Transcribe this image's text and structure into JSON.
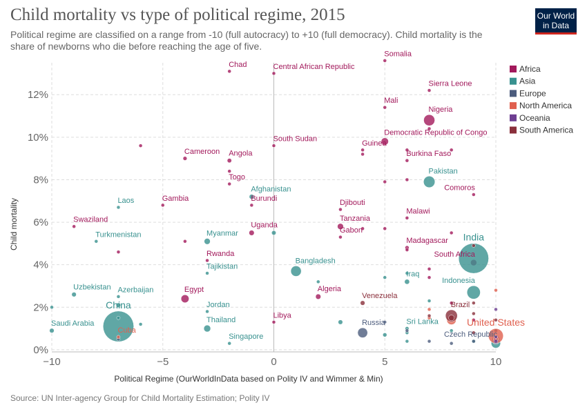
{
  "chart_data": {
    "type": "scatter",
    "title": "Child mortality vs type of political regime, 2015",
    "subtitle": "Political regime are classified on a range from -10 (full autocracy) to +10 (full democracy). Child mortality is the share of newborns who die before reaching the age of five.",
    "logo": [
      "Our World",
      "in Data"
    ],
    "x_label": "Political Regime (OurWorldInData based on Polity IV and Wimmer & Min)",
    "y_label": "Child mortality",
    "source": "Source: UN Inter-agency Group for Child Mortality Estimation; Polity IV",
    "xlim": [
      -10,
      10
    ],
    "ylim": [
      -0.1,
      13.5
    ],
    "xticks": [
      {
        "value": -10,
        "label": "−10"
      },
      {
        "value": -5,
        "label": "−5"
      },
      0,
      5,
      10
    ],
    "yticks": [
      {
        "value": 0,
        "label": "0%"
      },
      {
        "value": 2,
        "label": "2%"
      },
      {
        "value": 4,
        "label": "4%"
      },
      {
        "value": 6,
        "label": "6%"
      },
      {
        "value": 8,
        "label": "8%"
      },
      {
        "value": 10,
        "label": "10%"
      },
      {
        "value": 12,
        "label": "12%"
      }
    ],
    "grid": true,
    "legend": "right",
    "series": [
      {
        "name": "Africa",
        "color": "#a2195b",
        "x": [
          -2,
          0,
          5,
          7,
          5,
          7,
          7,
          5,
          -4,
          -2,
          0,
          4,
          6,
          -6,
          4,
          6,
          8,
          -2,
          -2,
          5,
          6,
          9,
          -5,
          -1,
          3,
          6,
          -9,
          3,
          3,
          -1,
          -4,
          5,
          4,
          6,
          9,
          8,
          -7,
          -3,
          -4,
          2,
          0,
          7,
          7,
          6,
          8,
          9
        ],
        "values": [
          13.1,
          13.0,
          13.6,
          12.2,
          11.4,
          10.8,
          10.4,
          9.8,
          9.0,
          8.9,
          9.6,
          9.4,
          8.9,
          9.6,
          9.2,
          9.4,
          9.4,
          7.8,
          8.4,
          7.9,
          8.0,
          7.3,
          6.8,
          6.8,
          6.6,
          6.2,
          5.8,
          5.8,
          5.3,
          5.5,
          5.1,
          5.7,
          5.7,
          4.8,
          4.1,
          5.5,
          4.6,
          4.2,
          2.4,
          2.5,
          1.3,
          3.8,
          3.4,
          4.7,
          2.2,
          1.4
        ],
        "sizes": [
          14,
          4.5,
          14,
          7,
          17,
          181,
          5,
          77,
          23,
          28,
          12,
          12,
          18,
          1,
          5,
          4,
          2,
          7,
          2,
          10,
          3,
          1,
          2,
          10,
          1,
          17,
          1,
          53,
          2,
          40,
          4,
          3,
          5,
          24,
          55,
          11,
          5,
          11,
          92,
          40,
          6,
          4,
          2,
          2,
          1,
          1
        ],
        "labels": [
          "Chad",
          "Central African Republic",
          "Somalia",
          "Sierra Leone",
          "Mali",
          "Nigeria",
          null,
          "Democratic Republic of Congo",
          "Cameroon",
          "Angola",
          "South Sudan",
          "Guinea",
          "Burkina Faso",
          null,
          null,
          null,
          null,
          "Togo",
          null,
          null,
          null,
          "Comoros",
          "Gambia",
          "Burundi",
          "Djibouti",
          "Malawi",
          "Swaziland",
          "Tanzania",
          "Gabon",
          "Uganda",
          null,
          null,
          null,
          "Madagascar",
          "South Africa",
          null,
          null,
          "Rwanda",
          "Egypt",
          "Algeria",
          "Libya",
          null,
          null,
          null,
          null,
          null
        ]
      },
      {
        "name": "Asia",
        "color": "#38918f",
        "x": [
          -1,
          -7,
          7,
          -8,
          -3,
          0,
          9,
          1,
          -3,
          6,
          6,
          2,
          9,
          -9,
          -7,
          -7,
          -7,
          -7,
          -3,
          -3,
          -10,
          -10,
          -6,
          -2,
          3,
          6,
          5,
          6,
          7,
          5,
          8,
          10,
          9,
          6
        ],
        "values": [
          7.2,
          6.7,
          7.9,
          5.1,
          5.1,
          5.5,
          4.3,
          3.7,
          3.6,
          3.2,
          3.6,
          3.2,
          2.7,
          2.6,
          2.5,
          1.1,
          2.1,
          1.5,
          1.8,
          1.0,
          0.9,
          2.0,
          1.2,
          0.3,
          1.3,
          1.0,
          0.7,
          0.8,
          2.3,
          3.4,
          0.9,
          0.3,
          0.4,
          0.4
        ],
        "sizes": [
          33,
          7,
          189,
          5,
          53,
          28,
          1311,
          161,
          8,
          36,
          5,
          4,
          258,
          31,
          10,
          1371,
          30,
          3,
          8,
          68,
          31,
          3,
          4,
          6,
          30,
          21,
          24,
          2,
          2,
          3,
          8,
          127,
          23,
          4
        ],
        "labels": [
          "Afghanistan",
          "Laos",
          "Pakistan",
          "Turkmenistan",
          "Myanmar",
          null,
          "India",
          "Bangladesh",
          "Tajikistan",
          "Iraq",
          null,
          null,
          "Indonesia",
          "Uzbekistan",
          "Azerbaijan",
          "China",
          null,
          null,
          "Jordan",
          "Thailand",
          "Saudi Arabia",
          null,
          null,
          "Singapore",
          null,
          "Sri Lanka",
          null,
          null,
          null,
          null,
          null,
          null,
          null,
          null
        ]
      },
      {
        "name": "Europe",
        "color": "#4c5c7d",
        "x": [
          4,
          10,
          9,
          10,
          10,
          8,
          7,
          10,
          10,
          5,
          6,
          -7
        ],
        "values": [
          0.8,
          0.4,
          0.4,
          0.4,
          0.5,
          0.3,
          0.4,
          0.6,
          0.9,
          1.3,
          0.9,
          0.5
        ],
        "sizes": [
          144,
          10,
          5,
          60,
          80,
          10,
          2,
          10,
          4,
          3,
          9,
          9
        ],
        "labels": [
          "Russia",
          "Czech Republic",
          null,
          null,
          null,
          null,
          null,
          null,
          null,
          null,
          null,
          null
        ]
      },
      {
        "name": "North America",
        "color": "#e0604f",
        "x": [
          10,
          -7,
          8,
          7,
          10,
          7,
          10
        ],
        "values": [
          0.65,
          0.6,
          1.4,
          1.9,
          2.8,
          1.5,
          0.5
        ],
        "sizes": [
          321,
          11,
          127,
          5,
          1,
          10,
          36
        ],
        "labels": [
          "United States",
          "Cuba",
          null,
          null,
          null,
          null,
          null
        ]
      },
      {
        "name": "Oceania",
        "color": "#6d3e91",
        "x": [
          10,
          10,
          10
        ],
        "values": [
          0.4,
          0.6,
          1.9
        ],
        "sizes": [
          24,
          5,
          1
        ],
        "labels": [
          null,
          null,
          null
        ]
      },
      {
        "name": "South America",
        "color": "#8a2f3b",
        "x": [
          4,
          8,
          9,
          9,
          7,
          9,
          10,
          8,
          9
        ],
        "values": [
          2.2,
          1.6,
          2.2,
          1.7,
          1.6,
          4.9,
          1.4,
          1.5,
          0.8
        ],
        "sizes": [
          31,
          206,
          2,
          10,
          10,
          11,
          3,
          48,
          18
        ],
        "labels": [
          "Venezuela",
          "Brazil",
          null,
          null,
          null,
          null,
          null,
          null,
          null
        ]
      }
    ]
  }
}
